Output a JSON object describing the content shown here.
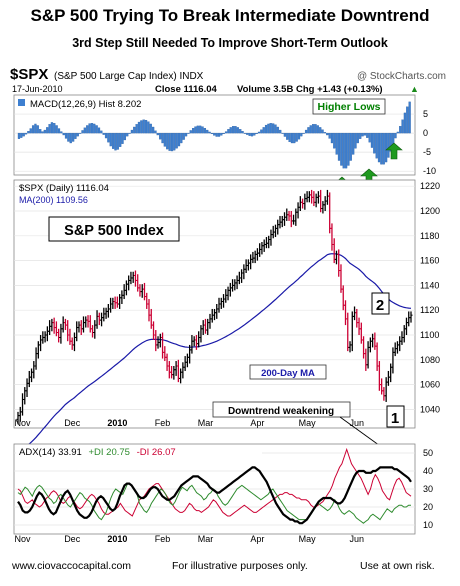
{
  "header": {
    "title": "S&P 500 Trying To Break Intermediate Downtrend",
    "subtitle": "3rd Step Still Needed To Improve Short-Term Outlook"
  },
  "info": {
    "symbol": "$SPX",
    "name": "(S&P 500 Large Cap Index) INDX",
    "source": "@ StockCharts.com",
    "date": "17-Jun-2010",
    "close": "Close 1116.04",
    "volume": "Volume 3.5B",
    "change": "Chg +1.43 (+0.13%)",
    "change_arrow": "▲"
  },
  "colors": {
    "price_up": "#000000",
    "price_down": "#cc0033",
    "ma": "#1a1aa8",
    "macd_hist": "#3d7fd0",
    "adx": "#000000",
    "plus_di": "#2e8b2e",
    "minus_di": "#cc0033",
    "arrow": "#1f9a1f",
    "callout_text": "#008000"
  },
  "chart_data": [
    {
      "type": "bar",
      "panel": "macd",
      "legend": "MACD(12,26,9) Hist 8.202",
      "yticks": [
        5,
        0,
        -5,
        -10
      ],
      "ylim": [
        -11,
        10
      ],
      "values": [
        -1.5,
        -1.2,
        -0.8,
        -0.3,
        0.5,
        1.2,
        2.0,
        2.4,
        2.0,
        1.0,
        0.4,
        0.8,
        1.5,
        2.3,
        2.8,
        2.6,
        2.0,
        1.2,
        0.4,
        -0.5,
        -1.4,
        -2.2,
        -2.6,
        -2.2,
        -1.5,
        -0.8,
        0.0,
        0.7,
        1.4,
        2.0,
        2.5,
        2.6,
        2.4,
        2.0,
        1.4,
        0.6,
        -0.4,
        -1.3,
        -2.4,
        -3.4,
        -4.1,
        -4.5,
        -4.3,
        -3.6,
        -2.8,
        -1.8,
        -0.8,
        0.0,
        0.8,
        1.6,
        2.3,
        2.9,
        3.3,
        3.5,
        3.4,
        3.0,
        2.4,
        1.6,
        0.6,
        -0.5,
        -1.6,
        -2.6,
        -3.5,
        -4.2,
        -4.6,
        -4.7,
        -4.5,
        -4.0,
        -3.4,
        -2.6,
        -1.7,
        -0.8,
        0.0,
        0.7,
        1.3,
        1.7,
        1.9,
        1.9,
        1.7,
        1.3,
        0.8,
        0.3,
        -0.2,
        -0.6,
        -0.9,
        -0.9,
        -0.6,
        -0.2,
        0.4,
        1.0,
        1.5,
        1.8,
        1.8,
        1.5,
        1.0,
        0.5,
        0.0,
        -0.4,
        -0.7,
        -0.8,
        -0.6,
        -0.2,
        0.3,
        0.9,
        1.5,
        2.1,
        2.4,
        2.6,
        2.5,
        2.2,
        1.6,
        0.8,
        0.0,
        -0.9,
        -1.7,
        -2.3,
        -2.6,
        -2.6,
        -2.2,
        -1.6,
        -0.8,
        0.0,
        0.8,
        1.5,
        2.0,
        2.3,
        2.3,
        2.0,
        1.5,
        0.9,
        0.2,
        -0.5,
        -1.4,
        -2.6,
        -4.0,
        -5.6,
        -7.2,
        -8.5,
        -9.2,
        -9.2,
        -8.5,
        -7.2,
        -5.6,
        -4.0,
        -2.6,
        -1.5,
        -0.8,
        -0.6,
        -1.2,
        -2.4,
        -3.8,
        -5.3,
        -6.6,
        -7.6,
        -8.2,
        -8.2,
        -7.6,
        -6.4,
        -4.8,
        -3.0,
        -1.3,
        0.3,
        1.8,
        3.5,
        5.3,
        6.9,
        8.2
      ]
    },
    {
      "type": "bar",
      "panel": "price",
      "legend": [
        "$SPX (Daily) 1116.04",
        "MA(200) 1109.56"
      ],
      "yticks": [
        1040,
        1060,
        1080,
        1100,
        1120,
        1140,
        1160,
        1180,
        1200,
        1220
      ],
      "ylim": [
        1025,
        1225
      ],
      "xlabels": [
        "Nov",
        "Dec",
        "2010",
        "Feb",
        "Mar",
        "Apr",
        "May",
        "Jun"
      ],
      "close": [
        1035,
        1038,
        1048,
        1055,
        1061,
        1066,
        1070,
        1075,
        1085,
        1092,
        1096,
        1098,
        1100,
        1103,
        1107,
        1110,
        1106,
        1102,
        1098,
        1105,
        1110,
        1108,
        1100,
        1095,
        1092,
        1098,
        1106,
        1108,
        1105,
        1110,
        1112,
        1111,
        1105,
        1102,
        1108,
        1115,
        1112,
        1114,
        1117,
        1119,
        1121,
        1125,
        1127,
        1126,
        1125,
        1130,
        1132,
        1136,
        1141,
        1144,
        1146,
        1148,
        1144,
        1138,
        1135,
        1137,
        1131,
        1125,
        1116,
        1108,
        1100,
        1092,
        1094,
        1098,
        1086,
        1082,
        1075,
        1070,
        1068,
        1072,
        1075,
        1065,
        1070,
        1074,
        1078,
        1082,
        1088,
        1095,
        1096,
        1093,
        1098,
        1105,
        1108,
        1104,
        1110,
        1113,
        1116,
        1118,
        1121,
        1125,
        1127,
        1129,
        1132,
        1136,
        1138,
        1140,
        1142,
        1144,
        1146,
        1150,
        1153,
        1156,
        1158,
        1161,
        1162,
        1165,
        1166,
        1169,
        1172,
        1173,
        1174,
        1177,
        1181,
        1183,
        1186,
        1189,
        1191,
        1193,
        1195,
        1197,
        1196,
        1192,
        1192,
        1199,
        1203,
        1207,
        1206,
        1210,
        1211,
        1213,
        1211,
        1207,
        1211,
        1212,
        1202,
        1205,
        1208,
        1212,
        1186,
        1173,
        1161,
        1165,
        1152,
        1137,
        1124,
        1113,
        1090,
        1092,
        1115,
        1118,
        1110,
        1105,
        1096,
        1085,
        1076,
        1090,
        1095,
        1097,
        1091,
        1075,
        1060,
        1055,
        1051,
        1062,
        1066,
        1074,
        1086,
        1089,
        1092,
        1095,
        1098,
        1105,
        1110,
        1114,
        1116
      ]
    },
    {
      "type": "line",
      "panel": "adx",
      "legend": [
        "ADX(14) 33.91",
        "+DI 20.75",
        "-DI 26.07"
      ],
      "yticks": [
        10,
        20,
        30,
        40,
        50
      ],
      "ylim": [
        5,
        55
      ],
      "xlabels": [
        "Nov",
        "Dec",
        "2010",
        "Feb",
        "Mar",
        "Apr",
        "May",
        "Jun"
      ],
      "series": [
        {
          "name": "ADX(14)",
          "values": [
            23,
            21,
            18,
            17,
            17,
            18,
            20,
            23,
            26,
            28,
            27,
            25,
            22,
            19,
            17,
            16,
            17,
            20,
            23,
            26,
            28,
            29,
            27,
            24,
            21,
            18,
            16,
            15,
            14,
            14,
            15,
            17,
            20,
            23,
            25,
            26,
            25,
            23,
            21,
            19,
            18,
            19,
            22,
            26,
            29,
            32,
            33,
            33,
            32,
            30,
            28,
            26,
            25,
            25,
            26,
            28,
            30,
            31,
            31,
            30,
            28,
            26,
            25,
            24,
            24,
            25,
            26,
            28,
            30,
            32,
            33,
            34,
            35,
            36,
            37,
            37,
            37,
            36,
            35,
            34,
            33,
            31,
            30,
            29,
            28,
            28,
            29,
            30,
            31,
            32,
            33,
            34,
            35,
            36,
            37,
            38,
            39,
            40,
            41,
            42,
            42,
            41,
            40,
            38,
            36,
            34,
            31,
            28,
            25,
            22,
            20,
            18,
            16,
            15,
            14,
            13,
            13,
            12,
            12,
            11,
            11,
            12,
            13,
            15,
            17,
            19,
            21,
            23,
            24,
            25,
            25,
            25,
            25,
            24,
            23,
            22,
            22,
            23,
            25,
            28,
            31,
            34,
            37,
            39,
            40,
            40,
            40,
            39,
            39,
            39,
            40,
            40,
            41,
            42,
            42,
            42,
            42,
            42,
            42,
            41,
            41,
            40,
            39,
            38,
            37,
            36,
            34
          ]
        },
        {
          "name": "+DI",
          "values": [
            28,
            27,
            29,
            31,
            30,
            28,
            26,
            29,
            31,
            32,
            31,
            29,
            27,
            25,
            24,
            22,
            23,
            26,
            27,
            25,
            23,
            21,
            20,
            22,
            24,
            26,
            28,
            27,
            25,
            24,
            23,
            21,
            18,
            16,
            14,
            13,
            15,
            17,
            21,
            25,
            28,
            30,
            29,
            28,
            27,
            30,
            33,
            33,
            31,
            29,
            27,
            22,
            20,
            18,
            17,
            19,
            22,
            24,
            26,
            28,
            30,
            29,
            27,
            24,
            22,
            21,
            23,
            26,
            29,
            31,
            30,
            29,
            31,
            32,
            30,
            28,
            27,
            26,
            24,
            25,
            27,
            28,
            30,
            29,
            26,
            24,
            22,
            21,
            22,
            24,
            26,
            28,
            30,
            31,
            32,
            31,
            30,
            29,
            28,
            27,
            26,
            25,
            24,
            25,
            26,
            27,
            29,
            30,
            28,
            26,
            24,
            22,
            20,
            18,
            17,
            16,
            15,
            14,
            13,
            13,
            13,
            13,
            14,
            16,
            18,
            20,
            22,
            21,
            20,
            19,
            18,
            19,
            21,
            24,
            22,
            19,
            17,
            16,
            17,
            18,
            17,
            16,
            14,
            13,
            12,
            11,
            12,
            13,
            15,
            16,
            15,
            14,
            13,
            15,
            17,
            19,
            18,
            17,
            19,
            20,
            21,
            21,
            20,
            20,
            21,
            21
          ]
        },
        {
          "name": "-DI",
          "values": [
            30,
            29,
            26,
            23,
            22,
            23,
            24,
            22,
            21,
            20,
            21,
            23,
            25,
            26,
            28,
            29,
            28,
            26,
            23,
            22,
            23,
            25,
            26,
            24,
            22,
            20,
            19,
            20,
            22,
            24,
            26,
            27,
            26,
            24,
            22,
            19,
            17,
            16,
            16,
            17,
            18,
            19,
            20,
            22,
            20,
            18,
            17,
            16,
            15,
            18,
            21,
            24,
            25,
            26,
            28,
            30,
            31,
            32,
            33,
            33,
            31,
            29,
            27,
            25,
            23,
            21,
            19,
            18,
            17,
            17,
            18,
            20,
            22,
            21,
            19,
            18,
            18,
            17,
            18,
            19,
            20,
            22,
            24,
            23,
            21,
            19,
            17,
            16,
            15,
            15,
            16,
            17,
            18,
            19,
            20,
            21,
            20,
            19,
            18,
            17,
            17,
            18,
            19,
            20,
            21,
            22,
            23,
            24,
            25,
            26,
            27,
            27,
            28,
            28,
            27,
            27,
            26,
            25,
            25,
            24,
            24,
            24,
            23,
            21,
            20,
            20,
            21,
            22,
            23,
            25,
            27,
            29,
            32,
            36,
            39,
            42,
            44,
            48,
            52,
            48,
            44,
            42,
            40,
            38,
            36,
            33,
            30,
            27,
            30,
            35,
            38,
            36,
            33,
            29,
            27,
            25,
            24,
            28,
            32,
            35,
            36,
            34,
            31,
            28,
            27,
            26
          ]
        }
      ]
    }
  ],
  "annotations": {
    "higher_lows": "Higher Lows",
    "index_label": "S&P 500 Index",
    "ma_label": "200-Day MA",
    "downtrend": "Downtrend weakening",
    "step1": "1",
    "step2": "2"
  },
  "footer": {
    "website": "www.ciovaccocapital.com",
    "note": "For illustrative purposes only.",
    "risk": "Use at own risk."
  }
}
